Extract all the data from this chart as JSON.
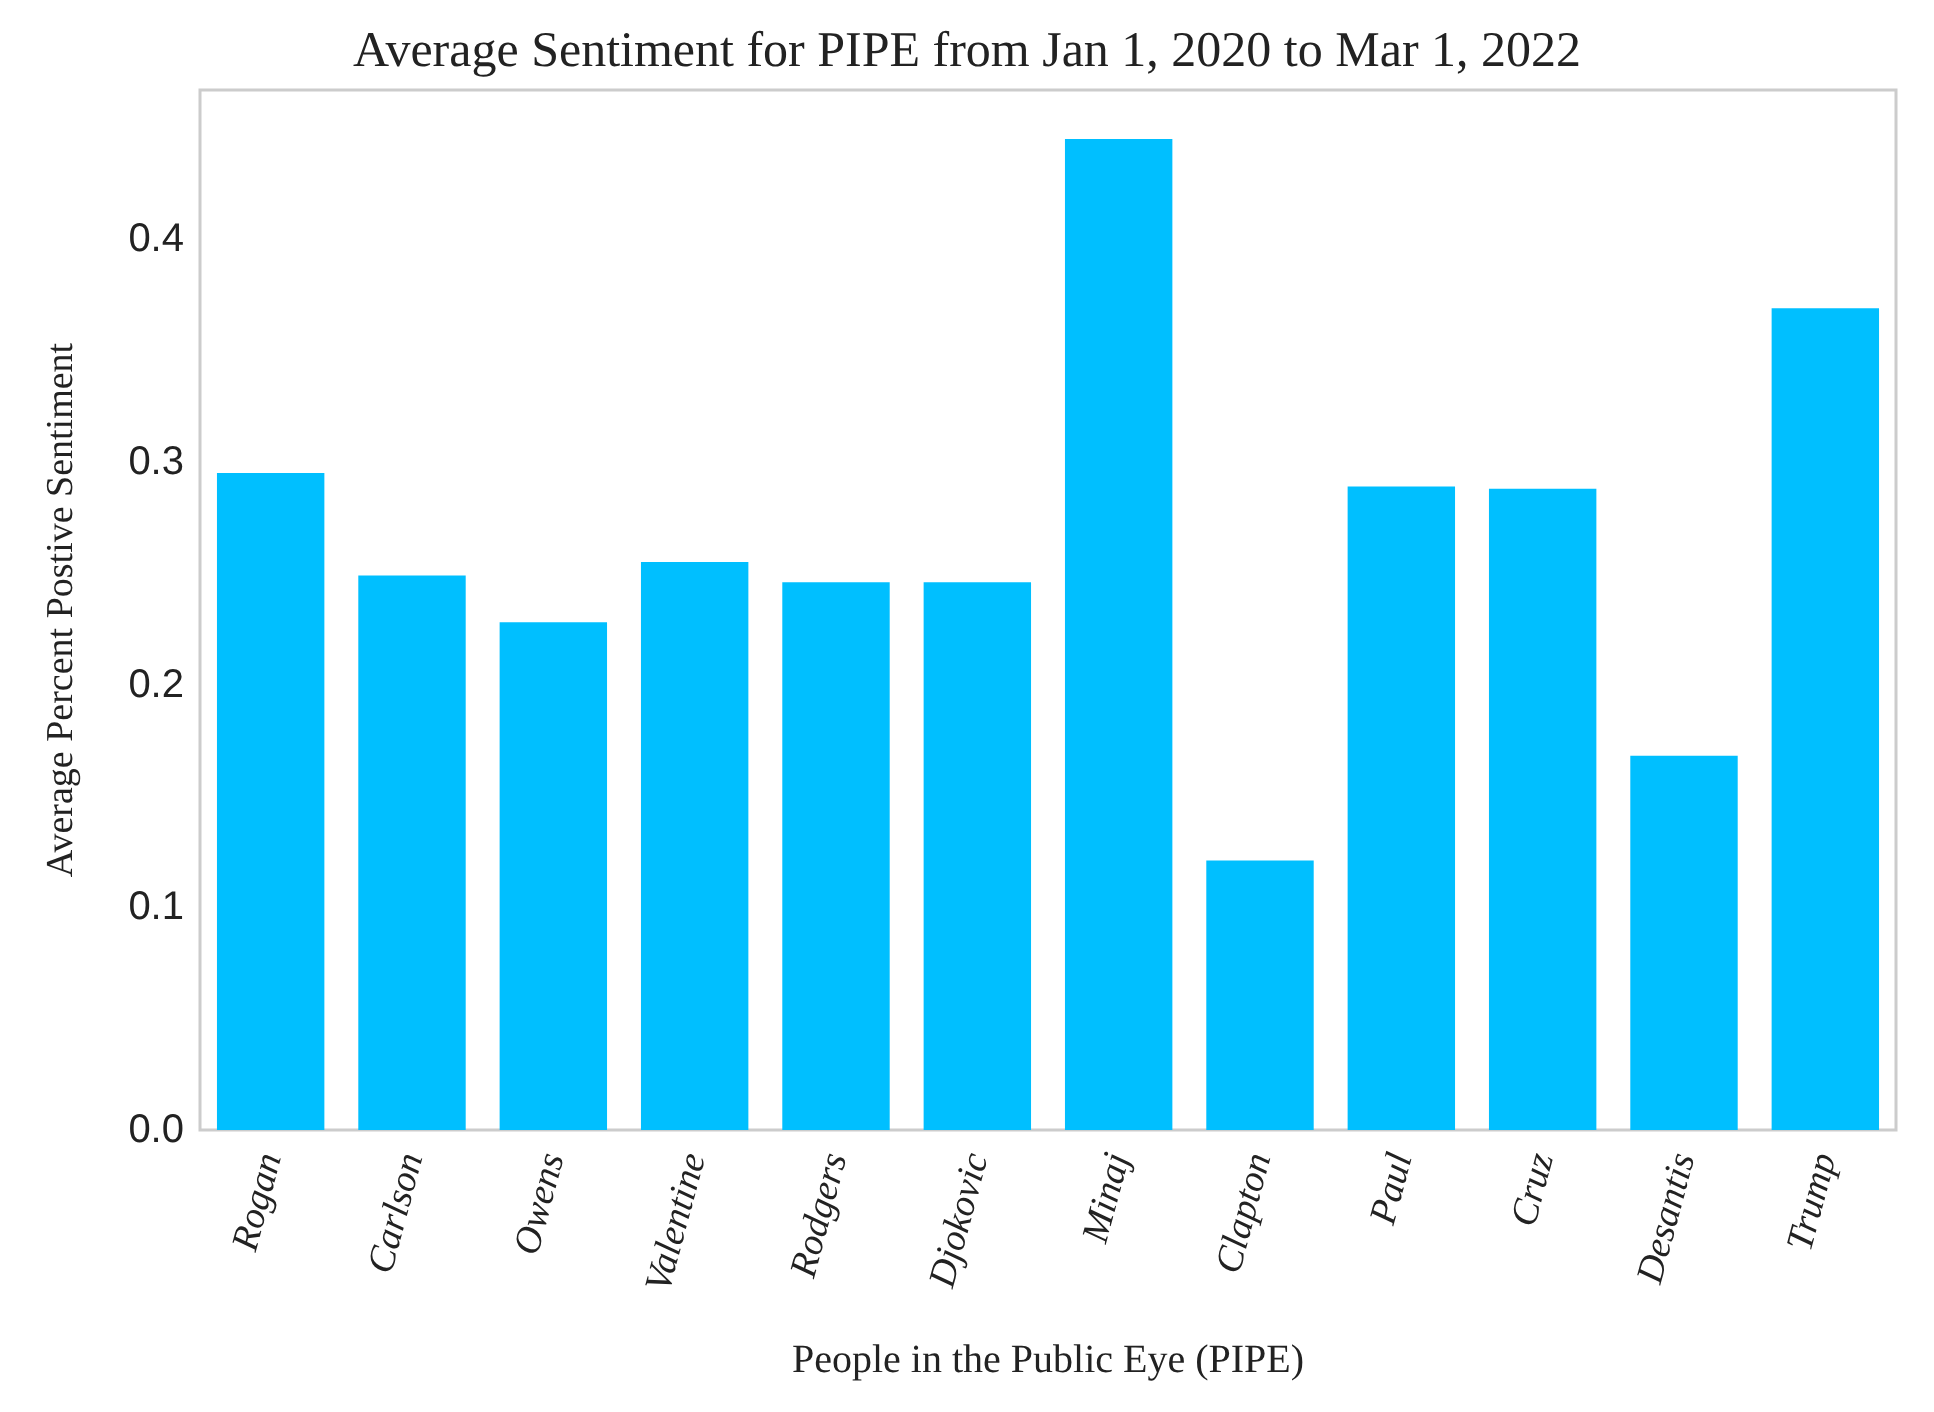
{
  "chart_data": {
    "type": "bar",
    "title": "Average Sentiment for PIPE from Jan 1, 2020 to Mar 1, 2022",
    "xlabel": "People in the Public Eye (PIPE)",
    "ylabel": "Average Percent Postive Sentiment",
    "categories": [
      "Rogan",
      "Carlson",
      "Owens",
      "Valentine",
      "Rodgers",
      "Djokovic",
      "Minaj",
      "Clapton",
      "Paul",
      "Cruz",
      "Desantis",
      "Trump"
    ],
    "values": [
      0.295,
      0.249,
      0.228,
      0.255,
      0.246,
      0.246,
      0.445,
      0.121,
      0.289,
      0.288,
      0.168,
      0.369
    ],
    "color": "#00bfff",
    "ylim": [
      0,
      0.467
    ],
    "yticks": [
      {
        "value": 0,
        "label": "0.0"
      },
      0.1,
      0.2,
      0.3,
      0.4
    ],
    "grid": false
  }
}
